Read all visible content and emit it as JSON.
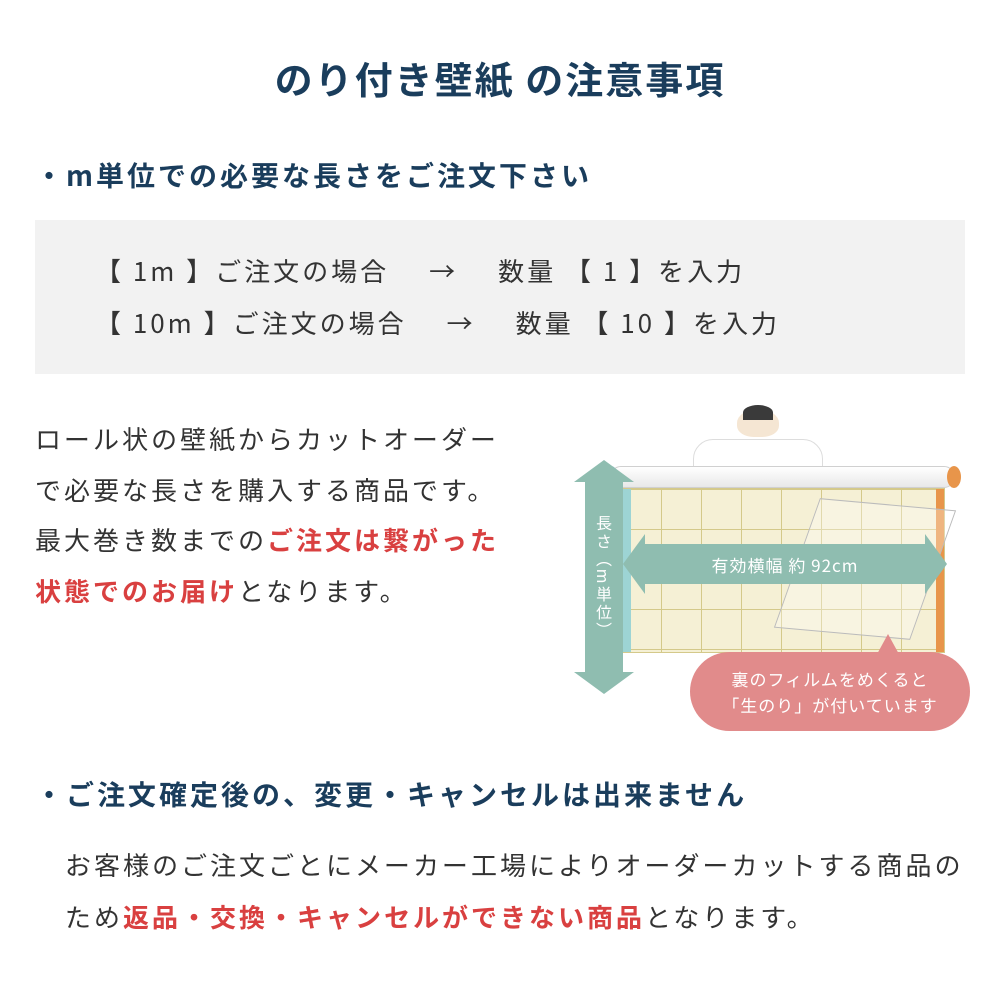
{
  "title": "のり付き壁紙 の注意事項",
  "bullet1": "・m単位での必要な長さをご注文下さい",
  "box": {
    "row1_left": "【 1m 】ご注文の場合",
    "row1_arrow": "→",
    "row1_right": "数量 【 1 】を入力",
    "row2_left": "【 10m 】ご注文の場合",
    "row2_arrow": "→",
    "row2_right": "数量 【 10 】を入力"
  },
  "desc": {
    "part1": "ロール状の壁紙からカットオーダーで必要な長さを購入する商品です。",
    "part2_pre": "最大巻き数までの",
    "part2_red": "ご注文は繋がった状態でのお届け",
    "part2_post": "となります。"
  },
  "diagram": {
    "v_label": "長さ（m単位）",
    "h_label": "有効横幅 約 92cm",
    "bubble_line1": "裏のフィルムをめくると",
    "bubble_line2": "「生のり」が付いています"
  },
  "bullet2": "・ご注文確定後の、変更・キャンセルは出来ません",
  "note": {
    "pre": "お客様のご注文ごとにメーカー工場によりオーダーカットする商品のため",
    "red": "返品・交換・キャンセルができない商品",
    "post": "となります。"
  },
  "colors": {
    "navy": "#1a3d5c",
    "red": "#d94040",
    "teal_arrow": "#8fbdb0",
    "bubble": "#e18b8b",
    "gray_box": "#f2f2f2",
    "paper": "#f5f0d5"
  }
}
